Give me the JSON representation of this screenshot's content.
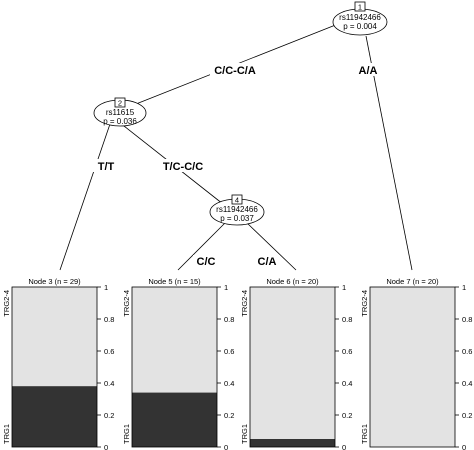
{
  "tree": {
    "inner_nodes": [
      {
        "id": "1",
        "variable": "rs11942466",
        "p": "p = 0.004"
      },
      {
        "id": "2",
        "variable": "rs11615",
        "p": "p = 0.036"
      },
      {
        "id": "4",
        "variable": "rs11942466",
        "p": "p = 0.037"
      }
    ],
    "edges": [
      {
        "label": "C/C-C/A"
      },
      {
        "label": "A/A"
      },
      {
        "label": "T/T"
      },
      {
        "label": "T/C-C/C"
      },
      {
        "label": "C/C"
      },
      {
        "label": "C/A"
      }
    ],
    "terminals": [
      {
        "title": "Node 3 (n = 29)",
        "trg1_fraction": 0.38
      },
      {
        "title": "Node 5 (n = 15)",
        "trg1_fraction": 0.34
      },
      {
        "title": "Node 6 (n = 20)",
        "trg1_fraction": 0.05
      },
      {
        "title": "Node 7 (n = 20)",
        "trg1_fraction": 0.0
      }
    ],
    "category_labels": {
      "top": "TRG2-4",
      "bottom": "TRG1"
    },
    "axis_ticks": [
      "0",
      "0.2",
      "0.4",
      "0.6",
      "0.8",
      "1"
    ],
    "colors": {
      "trg1": "#333333",
      "trg24": "#e3e3e3",
      "line": "#000000"
    }
  }
}
